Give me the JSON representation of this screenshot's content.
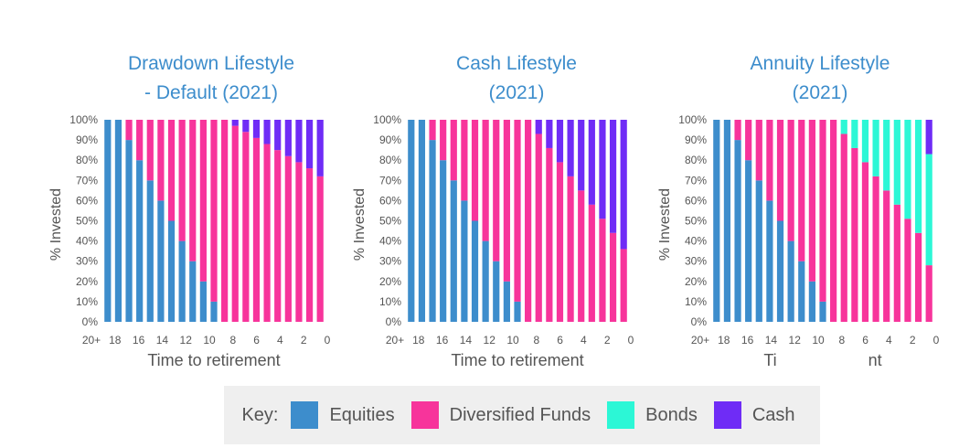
{
  "colors": {
    "equities": "#3d8dcc",
    "diversified": "#f7349b",
    "bonds": "#2cf7d6",
    "cash": "#6f2cf6",
    "title": "#3d8dcc",
    "text": "#555555"
  },
  "key": {
    "label": "Key:",
    "items": [
      {
        "name": "Equities",
        "color": "#3d8dcc"
      },
      {
        "name": "Diversified Funds",
        "color": "#f7349b"
      },
      {
        "name": "Bonds",
        "color": "#2cf7d6"
      },
      {
        "name": "Cash",
        "color": "#6f2cf6"
      }
    ]
  },
  "chart_data": [
    {
      "type": "bar",
      "stacked": true,
      "title_lines": [
        "Drawdown Lifestyle",
        "- Default (2021)"
      ],
      "xlabel": "Time to retirement",
      "ylabel": "% Invested",
      "ylim": [
        0,
        100
      ],
      "y_ticks": [
        "0%",
        "10%",
        "20%",
        "30%",
        "40%",
        "50%",
        "60%",
        "70%",
        "80%",
        "90%",
        "100%"
      ],
      "x_tick_labels": [
        "20+",
        "18",
        "16",
        "14",
        "12",
        "10",
        "8",
        "6",
        "4",
        "2",
        "0"
      ],
      "categories": [
        "20+",
        "19",
        "18",
        "17",
        "16",
        "15",
        "14",
        "13",
        "12",
        "11",
        "10",
        "9",
        "8",
        "7",
        "6",
        "5",
        "4",
        "3",
        "2",
        "1",
        "0"
      ],
      "series": [
        {
          "name": "Equities",
          "values": [
            100,
            100,
            90,
            80,
            70,
            60,
            50,
            40,
            30,
            20,
            10,
            0,
            0,
            0,
            0,
            0,
            0,
            0,
            0,
            0,
            0
          ]
        },
        {
          "name": "Diversified Funds",
          "values": [
            0,
            0,
            10,
            20,
            30,
            40,
            50,
            60,
            70,
            80,
            90,
            100,
            97,
            94,
            91,
            88,
            85,
            82,
            79,
            76,
            72
          ]
        },
        {
          "name": "Bonds",
          "values": [
            0,
            0,
            0,
            0,
            0,
            0,
            0,
            0,
            0,
            0,
            0,
            0,
            0,
            0,
            0,
            0,
            0,
            0,
            0,
            0,
            0
          ]
        },
        {
          "name": "Cash",
          "values": [
            0,
            0,
            0,
            0,
            0,
            0,
            0,
            0,
            0,
            0,
            0,
            0,
            3,
            6,
            9,
            12,
            15,
            18,
            21,
            24,
            28
          ]
        }
      ]
    },
    {
      "type": "bar",
      "stacked": true,
      "title_lines": [
        "Cash Lifestyle",
        "(2021)"
      ],
      "xlabel": "Time to retirement",
      "ylabel": "% Invested",
      "ylim": [
        0,
        100
      ],
      "y_ticks": [
        "0%",
        "10%",
        "20%",
        "30%",
        "40%",
        "50%",
        "60%",
        "70%",
        "80%",
        "90%",
        "100%"
      ],
      "x_tick_labels": [
        "20+",
        "18",
        "16",
        "14",
        "12",
        "10",
        "8",
        "6",
        "4",
        "2",
        "0"
      ],
      "categories": [
        "20+",
        "19",
        "18",
        "17",
        "16",
        "15",
        "14",
        "13",
        "12",
        "11",
        "10",
        "9",
        "8",
        "7",
        "6",
        "5",
        "4",
        "3",
        "2",
        "1",
        "0"
      ],
      "series": [
        {
          "name": "Equities",
          "values": [
            100,
            100,
            90,
            80,
            70,
            60,
            50,
            40,
            30,
            20,
            10,
            0,
            0,
            0,
            0,
            0,
            0,
            0,
            0,
            0,
            0
          ]
        },
        {
          "name": "Diversified Funds",
          "values": [
            0,
            0,
            10,
            20,
            30,
            40,
            50,
            60,
            70,
            80,
            90,
            100,
            93,
            86,
            79,
            72,
            65,
            58,
            51,
            44,
            36
          ]
        },
        {
          "name": "Bonds",
          "values": [
            0,
            0,
            0,
            0,
            0,
            0,
            0,
            0,
            0,
            0,
            0,
            0,
            0,
            0,
            0,
            0,
            0,
            0,
            0,
            0,
            0
          ]
        },
        {
          "name": "Cash",
          "values": [
            0,
            0,
            0,
            0,
            0,
            0,
            0,
            0,
            0,
            0,
            0,
            0,
            7,
            14,
            21,
            28,
            35,
            42,
            49,
            56,
            64
          ]
        }
      ]
    },
    {
      "type": "bar",
      "stacked": true,
      "title_lines": [
        "Annuity Lifestyle",
        "(2021)"
      ],
      "xlabel": "Ti                    nt",
      "ylabel": "% Invested",
      "ylim": [
        0,
        100
      ],
      "y_ticks": [
        "0%",
        "10%",
        "20%",
        "30%",
        "40%",
        "50%",
        "60%",
        "70%",
        "80%",
        "90%",
        "100%"
      ],
      "x_tick_labels": [
        "20+",
        "18",
        "16",
        "14",
        "12",
        "10",
        "8",
        "6",
        "4",
        "2",
        "0"
      ],
      "categories": [
        "20+",
        "19",
        "18",
        "17",
        "16",
        "15",
        "14",
        "13",
        "12",
        "11",
        "10",
        "9",
        "8",
        "7",
        "6",
        "5",
        "4",
        "3",
        "2",
        "1",
        "0"
      ],
      "series": [
        {
          "name": "Equities",
          "values": [
            100,
            100,
            90,
            80,
            70,
            60,
            50,
            40,
            30,
            20,
            10,
            0,
            0,
            0,
            0,
            0,
            0,
            0,
            0,
            0,
            0
          ]
        },
        {
          "name": "Diversified Funds",
          "values": [
            0,
            0,
            10,
            20,
            30,
            40,
            50,
            60,
            70,
            80,
            90,
            100,
            93,
            86,
            79,
            72,
            65,
            58,
            51,
            44,
            28
          ]
        },
        {
          "name": "Bonds",
          "values": [
            0,
            0,
            0,
            0,
            0,
            0,
            0,
            0,
            0,
            0,
            0,
            0,
            7,
            14,
            21,
            28,
            35,
            42,
            49,
            56,
            55
          ]
        },
        {
          "name": "Cash",
          "values": [
            0,
            0,
            0,
            0,
            0,
            0,
            0,
            0,
            0,
            0,
            0,
            0,
            0,
            0,
            0,
            0,
            0,
            0,
            0,
            0,
            17
          ]
        }
      ]
    }
  ]
}
